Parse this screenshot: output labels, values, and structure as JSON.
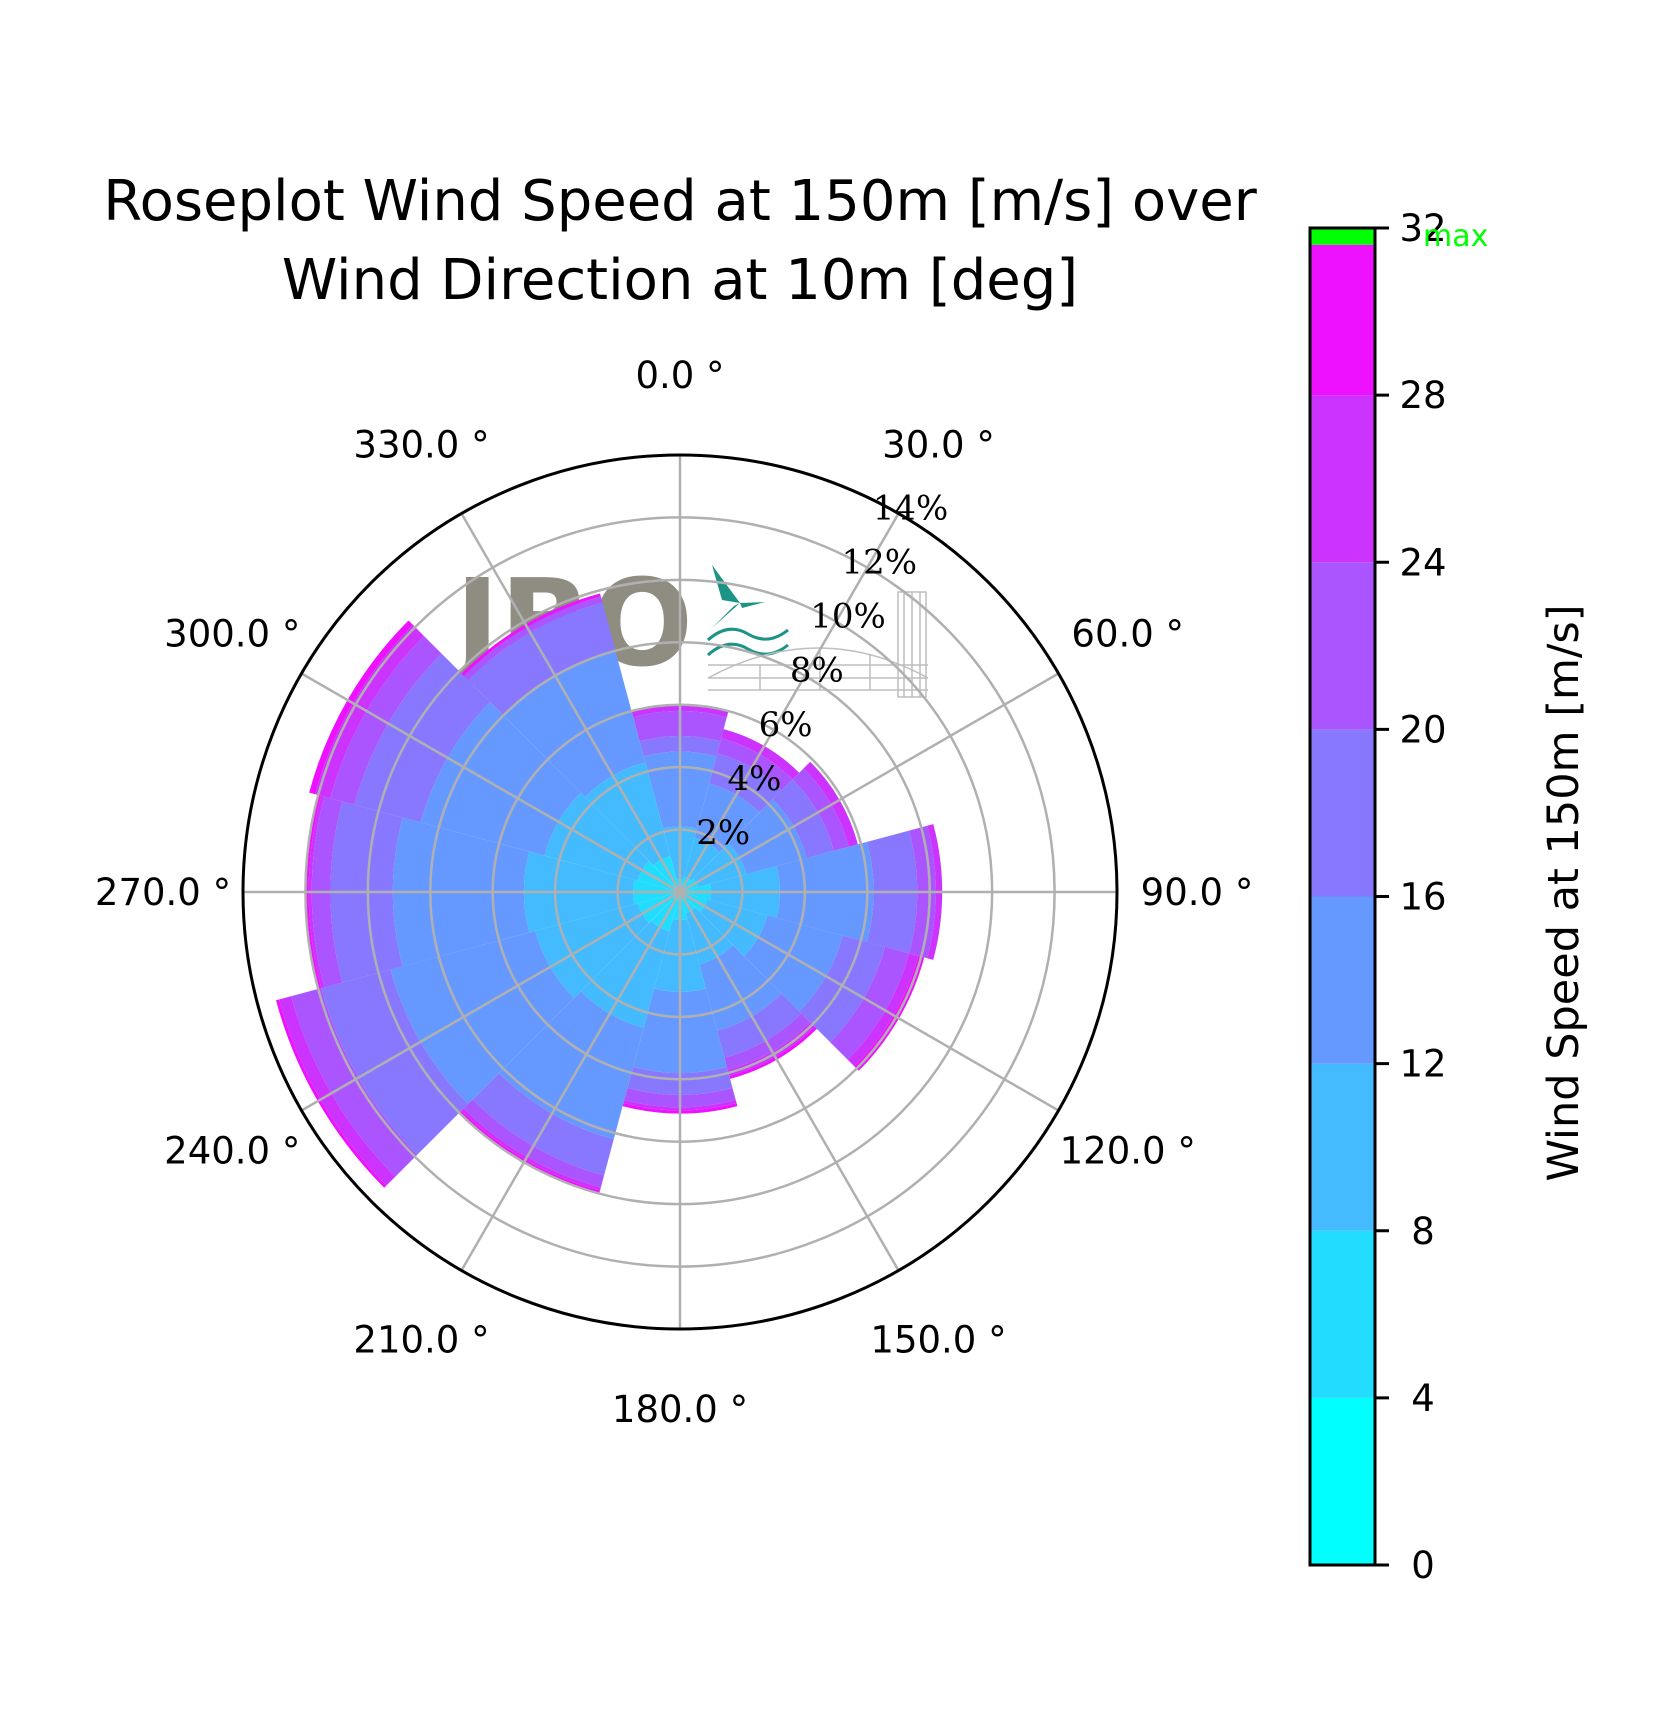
{
  "chart_data": {
    "type": "polar-bar",
    "title_line1": "Roseplot Wind Speed at 150m [m/s] over",
    "title_line2": "Wind Direction at 10m [deg]",
    "theta_zero": "N",
    "theta_direction": "clockwise",
    "angle_tick_labels": [
      "0.0 °",
      "30.0 °",
      "60.0 °",
      "90.0 °",
      "120.0 °",
      "150.0 °",
      "180.0 °",
      "210.0 °",
      "240.0 °",
      "270.0 °",
      "300.0 °",
      "330.0 °"
    ],
    "radial_tick_labels": [
      "2%",
      "4%",
      "6%",
      "8%",
      "10%",
      "12%",
      "14%"
    ],
    "radial_label_angle_deg": 30,
    "rmax_percent": 14,
    "grid": true,
    "sector_centers_deg": [
      0,
      30,
      60,
      90,
      120,
      150,
      180,
      210,
      240,
      270,
      300,
      330
    ],
    "sector_width_deg": 30,
    "speed_bins": [
      0,
      4,
      8,
      12,
      16,
      20,
      24,
      28,
      31.6
    ],
    "bin_colors": [
      "#00ffff",
      "#22ddff",
      "#44bbff",
      "#6699ff",
      "#8877ff",
      "#aa55ff",
      "#cc33ff",
      "#ee11ff"
    ],
    "cumulative_percent": [
      [
        0.1,
        0.4,
        2.1,
        4.5,
        5.0,
        5.8,
        6.0,
        6.0
      ],
      [
        0.1,
        0.5,
        1.8,
        3.6,
        4.6,
        5.1,
        5.4,
        5.4
      ],
      [
        0.1,
        0.6,
        2.2,
        4.2,
        5.1,
        5.6,
        5.9,
        5.9
      ],
      [
        0.2,
        1.0,
        3.2,
        6.2,
        7.6,
        8.2,
        8.4,
        8.4
      ],
      [
        0.1,
        0.9,
        2.9,
        5.4,
        6.8,
        7.6,
        7.9,
        8.1
      ],
      [
        0.1,
        0.7,
        2.4,
        4.6,
        5.5,
        5.9,
        6.1,
        6.2
      ],
      [
        0.1,
        0.9,
        3.2,
        5.8,
        6.5,
        6.9,
        7.0,
        7.1
      ],
      [
        0.2,
        1.3,
        4.5,
        8.2,
        9.4,
        9.8,
        9.9,
        10.0
      ],
      [
        0.2,
        1.4,
        4.8,
        9.6,
        11.9,
        12.9,
        13.3,
        13.4
      ],
      [
        0.2,
        1.5,
        5.0,
        9.2,
        11.2,
        11.8,
        11.9,
        12.0
      ],
      [
        0.2,
        1.4,
        4.5,
        8.6,
        10.8,
        11.6,
        12.1,
        12.3
      ],
      [
        0.1,
        1.2,
        4.3,
        8.0,
        9.6,
        9.8,
        9.8,
        9.9
      ]
    ],
    "colorbar": {
      "label": "Wind Speed at 150m [m/s]",
      "ticks": [
        "0",
        "4",
        "8",
        "12",
        "16",
        "20",
        "24",
        "28",
        "32"
      ],
      "min": 0,
      "max": 32,
      "max_marker_value": 31.6,
      "max_marker_label": "max",
      "max_marker_color": "#00ff00"
    }
  },
  "watermark": {
    "text": "JBO"
  }
}
